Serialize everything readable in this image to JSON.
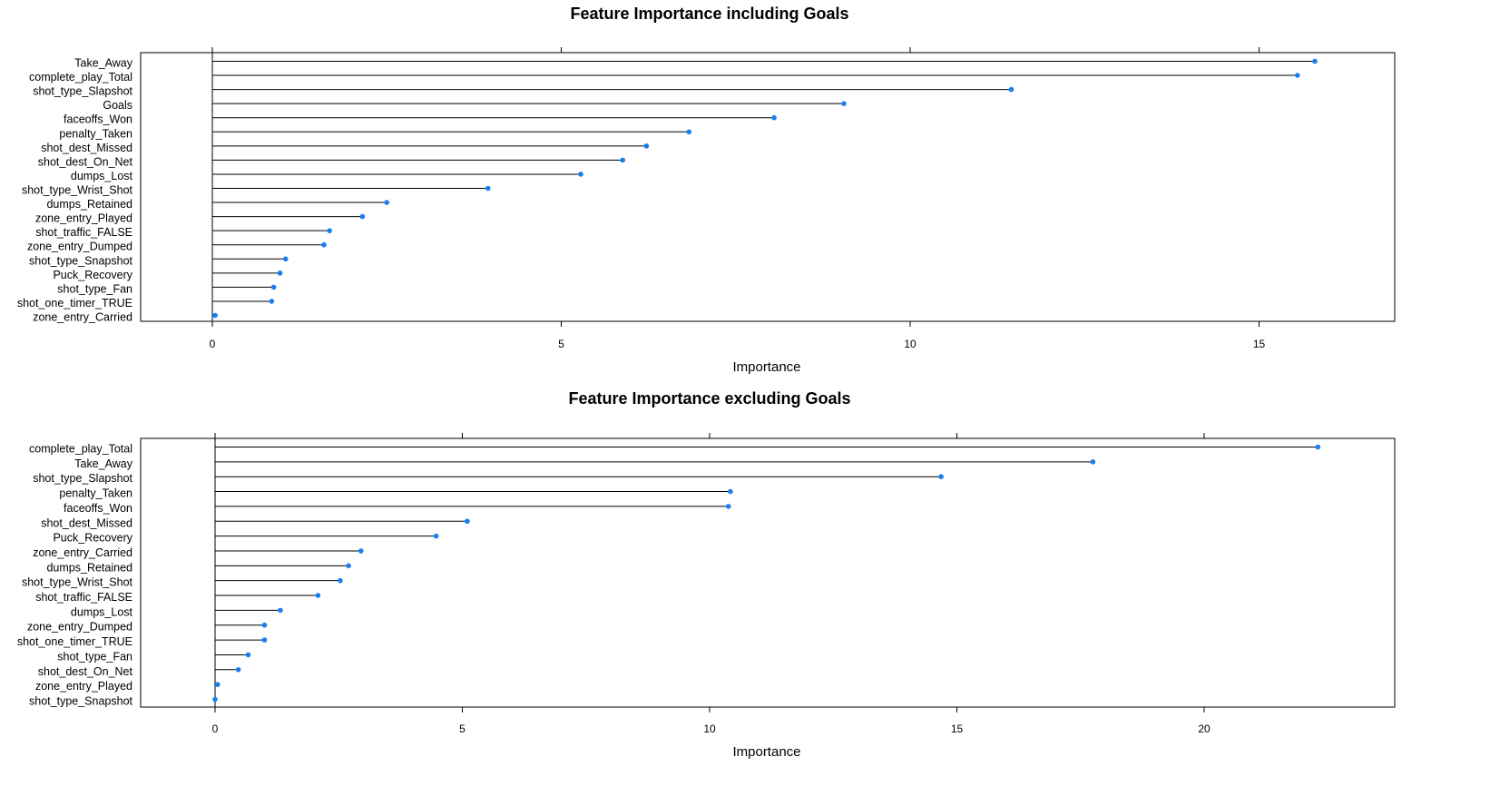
{
  "chart_data": [
    {
      "type": "lollipop",
      "title": "Feature Importance including Goals",
      "xlabel": "Importance",
      "ylabel": "",
      "xlim": [
        -1.0,
        17.0
      ],
      "xticks": [
        0,
        5,
        10,
        15
      ],
      "grid": false,
      "marker_color": "#1a7ef2",
      "categories": [
        "Take_Away",
        "complete_play_Total",
        "shot_type_Slapshot",
        "Goals",
        "faceoffs_Won",
        "penalty_Taken",
        "shot_dest_Missed",
        "shot_dest_On_Net",
        "dumps_Lost",
        "shot_type_Wrist_Shot",
        "dumps_Retained",
        "zone_entry_Played",
        "shot_traffic_FALSE",
        "zone_entry_Dumped",
        "shot_type_Snapshot",
        "Puck_Recovery",
        "shot_type_Fan",
        "shot_one_timer_TRUE",
        "zone_entry_Carried"
      ],
      "values": [
        15.8,
        15.55,
        11.45,
        9.05,
        8.05,
        6.83,
        6.22,
        5.88,
        5.28,
        3.95,
        2.5,
        2.15,
        1.68,
        1.6,
        1.05,
        0.97,
        0.88,
        0.85,
        0.04
      ]
    },
    {
      "type": "lollipop",
      "title": "Feature Importance excluding Goals",
      "xlabel": "Importance",
      "ylabel": "",
      "xlim": [
        -1.5,
        23.5
      ],
      "xticks": [
        0,
        5,
        10,
        15,
        20
      ],
      "grid": false,
      "marker_color": "#1a7ef2",
      "categories": [
        "complete_play_Total",
        "Take_Away",
        "shot_type_Slapshot",
        "penalty_Taken",
        "faceoffs_Won",
        "shot_dest_Missed",
        "Puck_Recovery",
        "zone_entry_Carried",
        "dumps_Retained",
        "shot_type_Wrist_Shot",
        "shot_traffic_FALSE",
        "dumps_Lost",
        "zone_entry_Dumped",
        "shot_one_timer_TRUE",
        "shot_type_Fan",
        "shot_dest_On_Net",
        "zone_entry_Played",
        "shot_type_Snapshot"
      ],
      "values": [
        22.3,
        17.75,
        14.68,
        10.42,
        10.38,
        5.1,
        4.47,
        2.95,
        2.7,
        2.53,
        2.08,
        1.32,
        1.0,
        1.0,
        0.67,
        0.47,
        0.05,
        0.0
      ]
    }
  ]
}
